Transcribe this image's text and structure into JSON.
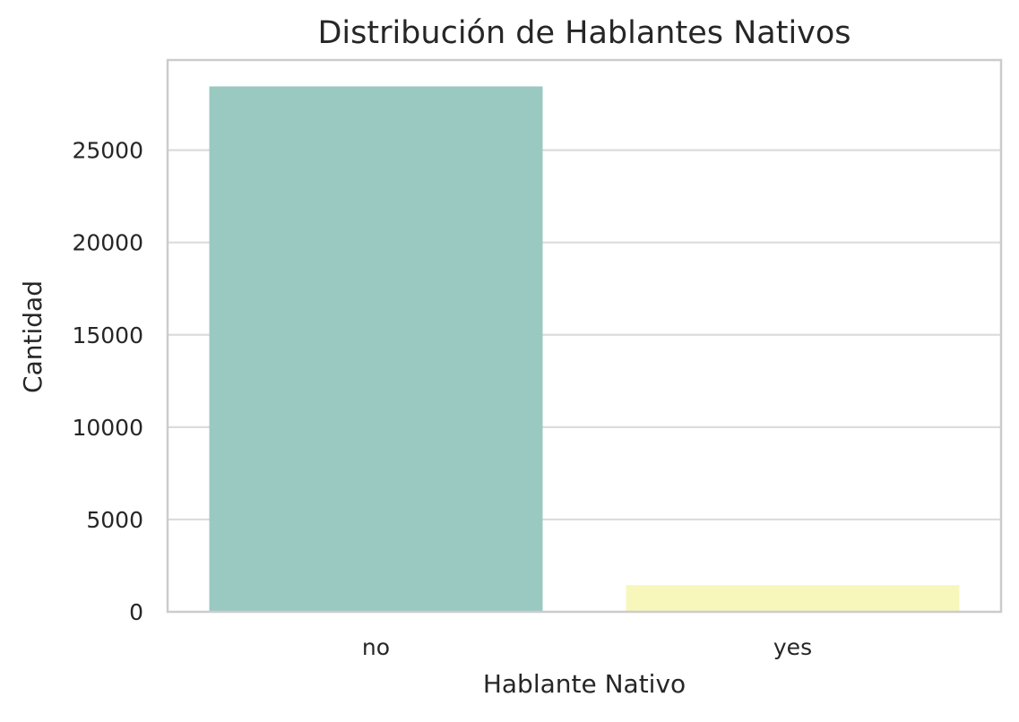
{
  "chart_data": {
    "type": "bar",
    "title": "Distribución de Hablantes Nativos",
    "xlabel": "Hablante Nativo",
    "ylabel": "Cantidad",
    "categories": [
      "no",
      "yes"
    ],
    "values": [
      28450,
      1450
    ],
    "colors": [
      "#99c9c1",
      "#f7f7bb"
    ],
    "ylim": [
      0,
      29880
    ],
    "yticks": [
      0,
      5000,
      10000,
      15000,
      20000,
      25000
    ],
    "grid": true,
    "legend": "none"
  },
  "style": {
    "grid_color": "#dcdcdc",
    "spine_color": "#cccccc",
    "text_color": "#262626",
    "background": "#ffffff"
  }
}
